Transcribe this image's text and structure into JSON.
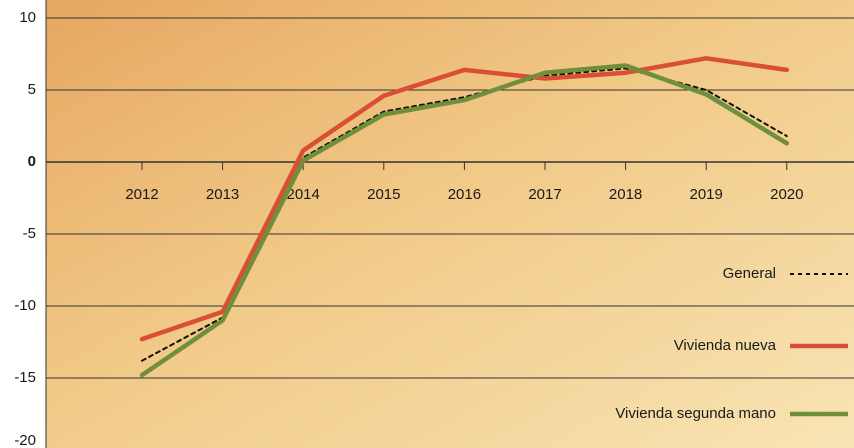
{
  "chart_data": {
    "type": "line",
    "categories": [
      "2012",
      "2013",
      "2014",
      "2015",
      "2016",
      "2017",
      "2018",
      "2019",
      "2020"
    ],
    "series": [
      {
        "name": "General",
        "color": "#111111",
        "dash": true,
        "values": [
          -13.8,
          -10.8,
          0.3,
          3.5,
          4.5,
          6.0,
          6.5,
          5.0,
          1.8
        ]
      },
      {
        "name": "Vivienda nueva",
        "color": "#d94f36",
        "dash": false,
        "values": [
          -12.3,
          -10.4,
          0.8,
          4.6,
          6.4,
          5.8,
          6.2,
          7.2,
          6.4
        ]
      },
      {
        "name": "Vivienda segunda mano",
        "color": "#6f8f3a",
        "dash": false,
        "values": [
          -14.8,
          -11.0,
          0.1,
          3.3,
          4.3,
          6.2,
          6.7,
          4.7,
          1.3
        ]
      }
    ],
    "ylim": [
      -20,
      10
    ],
    "yticks": [
      -20,
      -15,
      -10,
      -5,
      0,
      5,
      10
    ],
    "grid": true,
    "legend_position": "right"
  }
}
